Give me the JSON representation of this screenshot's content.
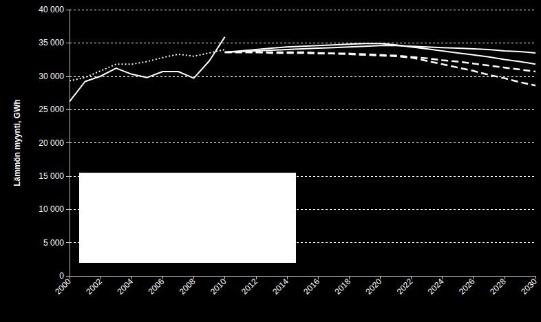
{
  "chart_data": {
    "type": "line",
    "y_label": "Lämmön myynti, GWh",
    "x": [
      2000,
      2001,
      2002,
      2003,
      2004,
      2005,
      2006,
      2007,
      2008,
      2009,
      2010,
      2011,
      2012,
      2013,
      2014,
      2015,
      2016,
      2017,
      2018,
      2019,
      2020,
      2021,
      2022,
      2023,
      2024,
      2025,
      2026,
      2027,
      2028,
      2029,
      2030
    ],
    "xlim": [
      2000,
      2030
    ],
    "xticks": [
      2000,
      2002,
      2004,
      2006,
      2008,
      2010,
      2012,
      2014,
      2016,
      2018,
      2020,
      2022,
      2024,
      2026,
      2028,
      2030
    ],
    "ylim": [
      0,
      40000
    ],
    "yticks": [
      0,
      {
        "value": 5000,
        "label": "5 000"
      },
      {
        "value": 10000,
        "label": "10 000"
      },
      {
        "value": 15000,
        "label": "15 000"
      },
      {
        "value": 20000,
        "label": "20 000"
      },
      {
        "value": 25000,
        "label": "25 000"
      },
      {
        "value": 30000,
        "label": "30 000"
      },
      {
        "value": 35000,
        "label": "35 000"
      },
      {
        "value": 40000,
        "label": "40 000"
      }
    ],
    "grid": true,
    "series": [
      {
        "color": "#ffffff",
        "line_style": "solid",
        "values": [
          26200,
          29200,
          30000,
          31200,
          30300,
          29800,
          30700,
          30700,
          29700,
          32300,
          35900,
          null,
          null,
          null,
          null,
          null,
          null,
          null,
          null,
          null,
          null,
          null,
          null,
          null,
          null,
          null,
          null,
          null,
          null,
          null,
          null
        ]
      },
      {
        "color": "#ffffff",
        "line_style": "dotted",
        "values": [
          29300,
          29800,
          30800,
          31800,
          31800,
          32200,
          32800,
          33300,
          33000,
          33500,
          34000,
          null,
          null,
          null,
          null,
          null,
          null,
          null,
          null,
          null,
          null,
          null,
          null,
          null,
          null,
          null,
          null,
          null,
          null,
          null,
          null
        ]
      },
      {
        "color": "#ffffff",
        "line_style": "solid",
        "values": [
          null,
          null,
          null,
          null,
          null,
          null,
          null,
          null,
          null,
          null,
          33600,
          33800,
          34000,
          34200,
          34400,
          34500,
          34600,
          34700,
          34800,
          34900,
          34900,
          34700,
          34400,
          34100,
          33800,
          33500,
          33200,
          32900,
          32500,
          32200,
          31800
        ]
      },
      {
        "color": "#ffffff",
        "line_style": "solid",
        "values": [
          null,
          null,
          null,
          null,
          null,
          null,
          null,
          null,
          null,
          null,
          33600,
          33700,
          33800,
          33900,
          34000,
          34100,
          34200,
          34300,
          34400,
          34500,
          34600,
          34600,
          34500,
          34400,
          34300,
          34200,
          34100,
          34000,
          33800,
          33700,
          33500
        ]
      },
      {
        "color": "#ffffff",
        "line_style": "dashed",
        "values": [
          null,
          null,
          null,
          null,
          null,
          null,
          null,
          null,
          null,
          null,
          33600,
          33600,
          33600,
          33600,
          33600,
          33600,
          33500,
          33400,
          33400,
          33300,
          33200,
          33100,
          32900,
          32700,
          32400,
          32200,
          31900,
          31600,
          31300,
          31000,
          30700
        ]
      },
      {
        "color": "#ffffff",
        "line_style": "dashed",
        "values": [
          null,
          null,
          null,
          null,
          null,
          null,
          null,
          null,
          null,
          null,
          33600,
          33600,
          33600,
          33500,
          33500,
          33500,
          33400,
          33400,
          33300,
          33200,
          33100,
          33000,
          32800,
          32300,
          31800,
          31300,
          30800,
          30200,
          29700,
          29100,
          28600
        ]
      }
    ]
  }
}
